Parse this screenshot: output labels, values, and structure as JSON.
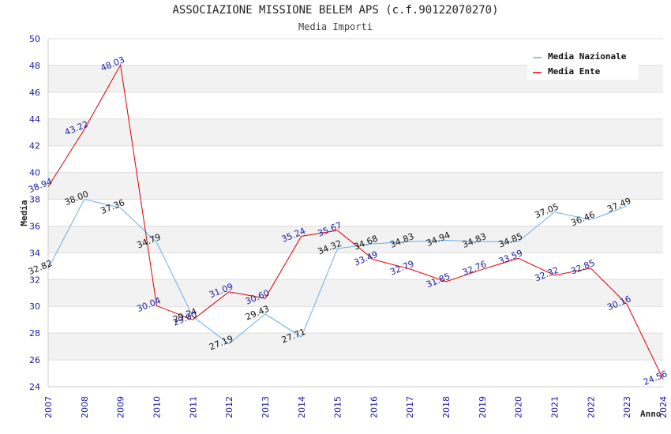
{
  "chart_data": {
    "type": "line",
    "title": "ASSOCIAZIONE MISSIONE BELEM APS (c.f.90122070270)",
    "subtitle": "Media Importi",
    "xlabel": "Anno",
    "ylabel": "Media",
    "ylim": [
      24,
      50
    ],
    "yticks": [
      "24",
      "26",
      "28",
      "30",
      "32",
      "34",
      "36",
      "38",
      "40",
      "42",
      "44",
      "46",
      "48",
      "50"
    ],
    "x": [
      "2007",
      "2008",
      "2009",
      "2010",
      "2011",
      "2012",
      "2013",
      "2014",
      "2015",
      "2016",
      "2017",
      "2018",
      "2019",
      "2020",
      "2021",
      "2022",
      "2023",
      "2024"
    ],
    "grid": true,
    "legend_position": "top-right",
    "series": [
      {
        "name": "Media Nazionale",
        "color": "#6aaee6",
        "values": [
          32.82,
          38.0,
          37.36,
          34.79,
          29.24,
          27.19,
          29.43,
          27.71,
          34.32,
          34.68,
          34.83,
          34.94,
          34.83,
          34.85,
          37.05,
          36.46,
          37.49,
          null
        ],
        "labels": [
          "32.82",
          "38.00",
          "37.36",
          "34.79",
          "29.24",
          "27.19",
          "29.43",
          "27.71",
          "34.32",
          "34.68",
          "34.83",
          "34.94",
          "34.83",
          "34.85",
          "37.05",
          "36.46",
          "37.49",
          null
        ]
      },
      {
        "name": "Media Ente",
        "color": "#dd0000",
        "values": [
          38.94,
          43.22,
          48.03,
          30.04,
          29.0,
          31.09,
          30.6,
          35.24,
          35.67,
          33.49,
          32.79,
          31.85,
          32.76,
          33.59,
          32.32,
          32.85,
          30.16,
          24.56
        ],
        "labels": [
          "38.94",
          "43.22",
          "48.03",
          "30.04",
          "29.00",
          "31.09",
          "30.60",
          "35.24",
          "35.67",
          "33.49",
          "32.79",
          "31.85",
          "32.76",
          "33.59",
          "32.32",
          "32.85",
          "30.16",
          "24.56"
        ]
      }
    ]
  }
}
